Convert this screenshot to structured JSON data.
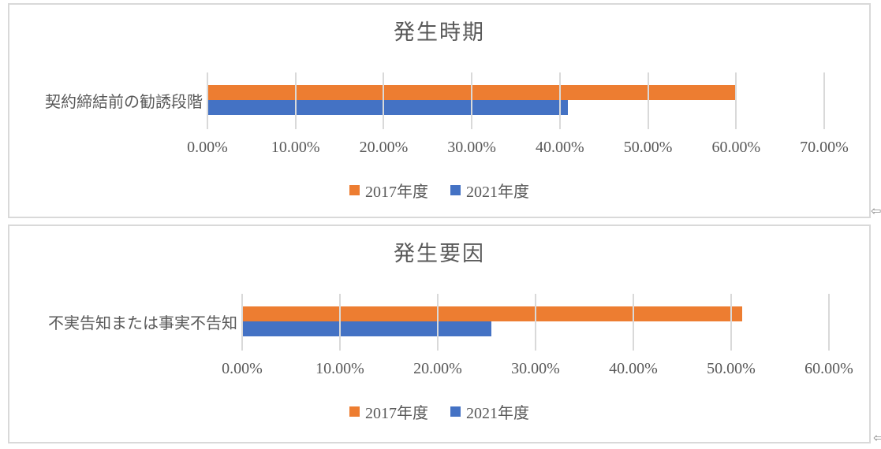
{
  "page": {
    "background": "#FFFFFF",
    "border_color": "#D9D9D9",
    "grid_color": "#D9D9D9",
    "text_color": "#595959"
  },
  "decorations": {
    "anchor_arrow_glyph": "⇦"
  },
  "chart_data": [
    {
      "type": "bar",
      "orientation": "horizontal",
      "title": "発生時期",
      "categories": [
        "契約締結前の勧誘段階"
      ],
      "series": [
        {
          "name": "2017年度",
          "color": "#ED7D31",
          "values": [
            59.9
          ]
        },
        {
          "name": "2021年度",
          "color": "#4472C4",
          "values": [
            40.9
          ]
        }
      ],
      "xlim": [
        0,
        70
      ],
      "tick_step": 10,
      "tick_labels": [
        "0.00%",
        "10.00%",
        "20.00%",
        "30.00%",
        "40.00%",
        "50.00%",
        "60.00%",
        "70.00%"
      ],
      "grid": true,
      "legend_position": "bottom"
    },
    {
      "type": "bar",
      "orientation": "horizontal",
      "title": "発生要因",
      "categories": [
        "不実告知または事実不告知"
      ],
      "series": [
        {
          "name": "2017年度",
          "color": "#ED7D31",
          "values": [
            51.1
          ]
        },
        {
          "name": "2021年度",
          "color": "#4472C4",
          "values": [
            25.5
          ]
        }
      ],
      "xlim": [
        0,
        60
      ],
      "tick_step": 10,
      "tick_labels": [
        "0.00%",
        "10.00%",
        "20.00%",
        "30.00%",
        "40.00%",
        "50.00%",
        "60.00%"
      ],
      "grid": true,
      "legend_position": "bottom"
    }
  ]
}
